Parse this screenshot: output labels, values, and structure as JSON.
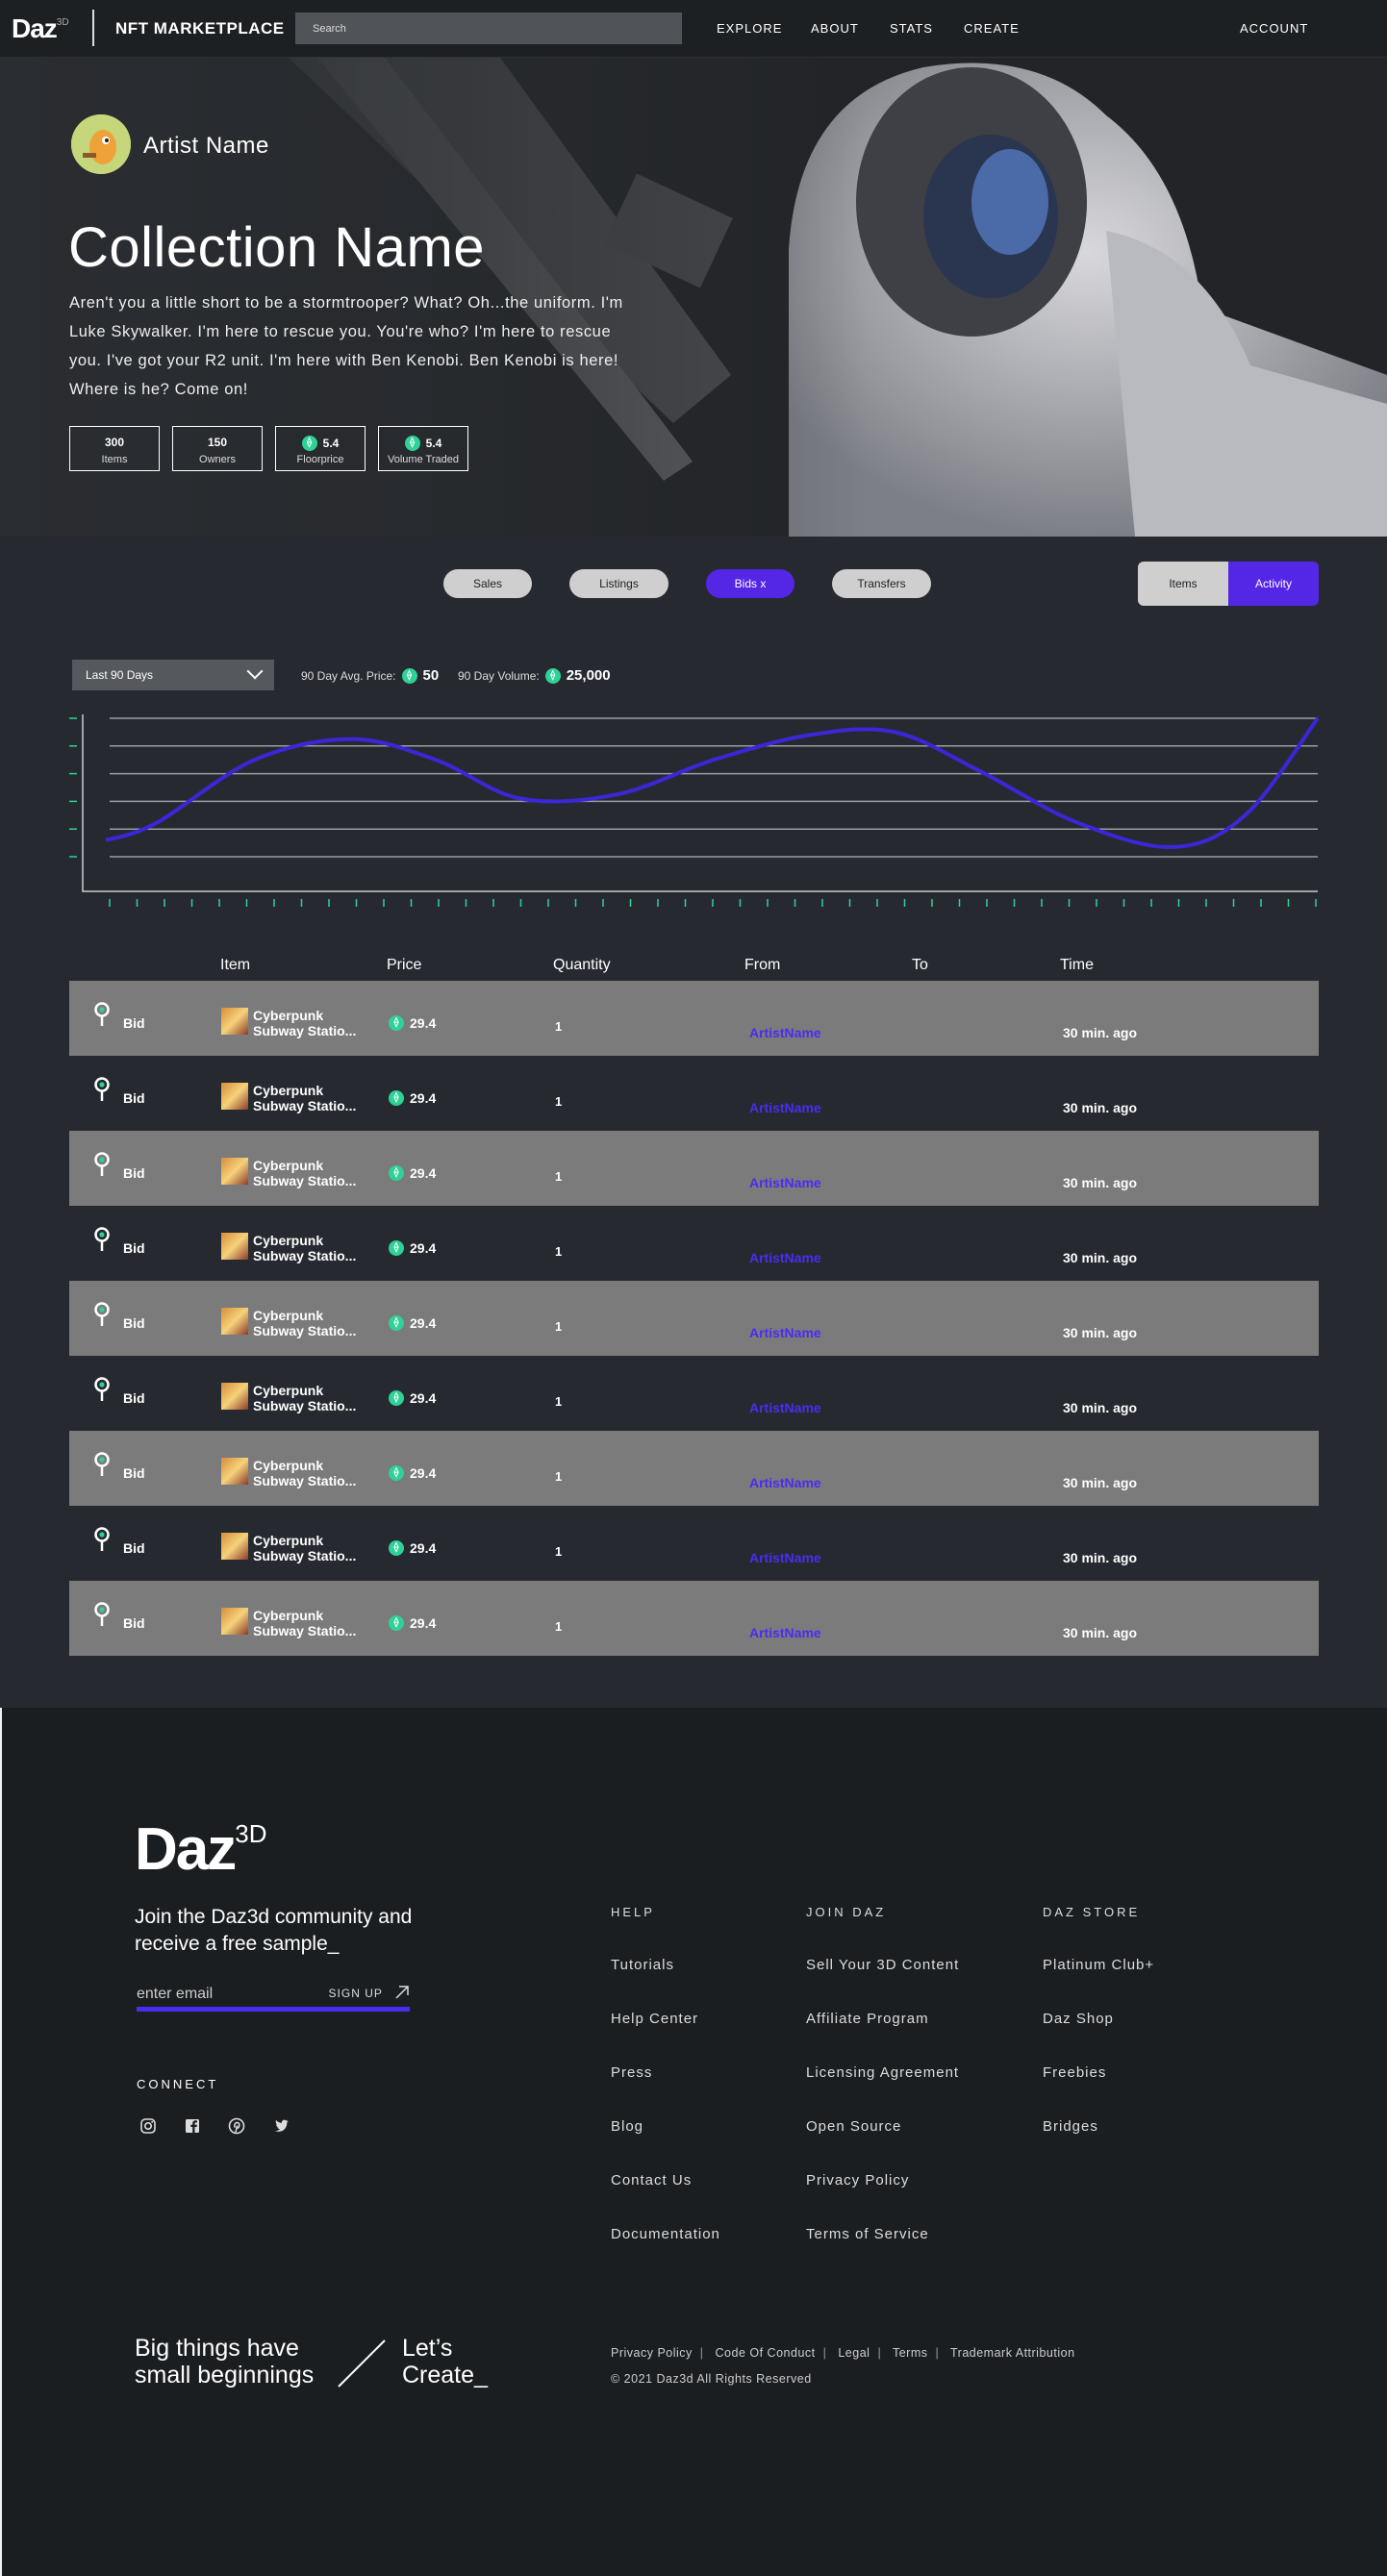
{
  "nav": {
    "logo": "Daz",
    "logo_sup": "3D",
    "title": "NFT MARKETPLACE",
    "search_placeholder": "Search",
    "links": [
      "EXPLORE",
      "ABOUT",
      "STATS",
      "CREATE"
    ],
    "account": "ACCOUNT"
  },
  "hero": {
    "artist": "Artist Name",
    "title": "Collection Name",
    "description": "Aren't you a little short to be a stormtrooper? What? Oh...the uniform. I'm Luke Skywalker. I'm here to rescue you. You're who? I'm here to rescue you. I've got your R2 unit. I'm here with Ben Kenobi. Ben Kenobi is here! Where is he? Come on!",
    "stats": [
      {
        "value": "300",
        "label": "Items",
        "eth": false
      },
      {
        "value": "150",
        "label": "Owners",
        "eth": false
      },
      {
        "value": "5.4",
        "label": "Floorprice",
        "eth": true
      },
      {
        "value": "5.4",
        "label": "Volume Traded",
        "eth": true
      }
    ]
  },
  "filters": {
    "sales": "Sales",
    "listings": "Listings",
    "bids": "Bids  x",
    "transfers": "Transfers",
    "active": "Bids"
  },
  "view_toggle": {
    "items": "Items",
    "activity": "Activity",
    "active": "Activity"
  },
  "range": {
    "selected": "Last 90 Days"
  },
  "metrics": {
    "avg_price_label": "90 Day Avg. Price:",
    "avg_price": "50",
    "volume_label": "90 Day Volume:",
    "volume": "25,000"
  },
  "chart_data": {
    "type": "line",
    "title": "",
    "xlabel": "",
    "ylabel": "",
    "grid": true,
    "series": [
      {
        "color": "#3b27d8",
        "points": [
          [
            0,
            0.12
          ],
          [
            0.04,
            0.25
          ],
          [
            0.12,
            0.7
          ],
          [
            0.2,
            0.85
          ],
          [
            0.27,
            0.7
          ],
          [
            0.34,
            0.42
          ],
          [
            0.42,
            0.45
          ],
          [
            0.5,
            0.7
          ],
          [
            0.58,
            0.88
          ],
          [
            0.65,
            0.9
          ],
          [
            0.72,
            0.62
          ],
          [
            0.8,
            0.25
          ],
          [
            0.88,
            0.07
          ],
          [
            0.94,
            0.3
          ],
          [
            1,
            1.0
          ]
        ]
      }
    ]
  },
  "table": {
    "headers": [
      "Item",
      "Price",
      "Quantity",
      "From",
      "To",
      "Time"
    ],
    "rows": [
      {
        "type": "Bid",
        "name1": "Cyberpunk",
        "name2": "Subway Statio...",
        "price": "29.4",
        "qty": "1",
        "from": "ArtistName",
        "time": "30 min. ago"
      },
      {
        "type": "Bid",
        "name1": "Cyberpunk",
        "name2": "Subway Statio...",
        "price": "29.4",
        "qty": "1",
        "from": "ArtistName",
        "time": "30 min. ago"
      },
      {
        "type": "Bid",
        "name1": "Cyberpunk",
        "name2": "Subway Statio...",
        "price": "29.4",
        "qty": "1",
        "from": "ArtistName",
        "time": "30 min. ago"
      },
      {
        "type": "Bid",
        "name1": "Cyberpunk",
        "name2": "Subway Statio...",
        "price": "29.4",
        "qty": "1",
        "from": "ArtistName",
        "time": "30 min. ago"
      },
      {
        "type": "Bid",
        "name1": "Cyberpunk",
        "name2": "Subway Statio...",
        "price": "29.4",
        "qty": "1",
        "from": "ArtistName",
        "time": "30 min. ago"
      },
      {
        "type": "Bid",
        "name1": "Cyberpunk",
        "name2": "Subway Statio...",
        "price": "29.4",
        "qty": "1",
        "from": "ArtistName",
        "time": "30 min. ago"
      },
      {
        "type": "Bid",
        "name1": "Cyberpunk",
        "name2": "Subway Statio...",
        "price": "29.4",
        "qty": "1",
        "from": "ArtistName",
        "time": "30 min. ago"
      },
      {
        "type": "Bid",
        "name1": "Cyberpunk",
        "name2": "Subway Statio...",
        "price": "29.4",
        "qty": "1",
        "from": "ArtistName",
        "time": "30 min. ago"
      },
      {
        "type": "Bid",
        "name1": "Cyberpunk",
        "name2": "Subway Statio...",
        "price": "29.4",
        "qty": "1",
        "from": "ArtistName",
        "time": "30 min. ago"
      }
    ]
  },
  "footer": {
    "logo": "Daz",
    "logo_sup": "3D",
    "join": "Join the Daz3d community and receive a free sample_",
    "email_placeholder": "enter email",
    "signup": "SIGN UP",
    "connect": "CONNECT",
    "social": [
      "instagram-icon",
      "facebook-icon",
      "pinterest-icon",
      "twitter-icon"
    ],
    "columns": [
      {
        "head": "HELP",
        "links": [
          "Tutorials",
          "Help Center",
          "Press",
          "Blog",
          "Contact Us",
          "Documentation"
        ]
      },
      {
        "head": "JOIN DAZ",
        "links": [
          "Sell Your 3D Content",
          "Affiliate Program",
          "Licensing Agreement",
          "Open Source",
          "Privacy Policy",
          "Terms of Service"
        ]
      },
      {
        "head": "DAZ STORE",
        "links": [
          "Platinum Club+",
          "Daz Shop",
          "Freebies",
          "Bridges"
        ]
      }
    ],
    "slogan_left": "Big things have small beginnings",
    "slogan_right": "Let’s Create_",
    "legal": [
      "Privacy Policy",
      "Code Of Conduct",
      "Legal",
      "Terms",
      "Trademark Attribution"
    ],
    "copyright": "© 2021 Daz3d All Rights Reserved"
  },
  "colors": {
    "accent": "#5426e6",
    "eth": "#2ed196",
    "row_gray": "#7b7b7b",
    "link": "#4a2cf0"
  }
}
